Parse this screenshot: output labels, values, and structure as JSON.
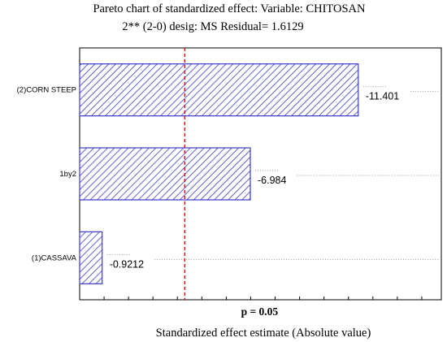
{
  "chart_data": {
    "type": "bar",
    "orientation": "horizontal",
    "title": "Pareto chart of standardized effect: Variable: CHITOSAN",
    "subtitle": "2** (2-0) desig: MS Residual= 1.6129",
    "xlabel": "Standardized effect estimate (Absolute value)",
    "ylabel": "",
    "categories": [
      "(2)CORN STEEP",
      "1by2",
      "(1)CASSAVA"
    ],
    "values": [
      11.401,
      6.984,
      0.9212
    ],
    "data_labels": [
      "-11.401",
      "-6.984",
      "-0.9212"
    ],
    "xlim": [
      0,
      14.8
    ],
    "reference_line": {
      "value": 4.303,
      "label": "p = 0.05"
    },
    "grid": false,
    "colors": {
      "bar_stroke": "#3a3ac8",
      "bar_hatch": "#3a3ac8",
      "reference": "#e00000"
    }
  }
}
